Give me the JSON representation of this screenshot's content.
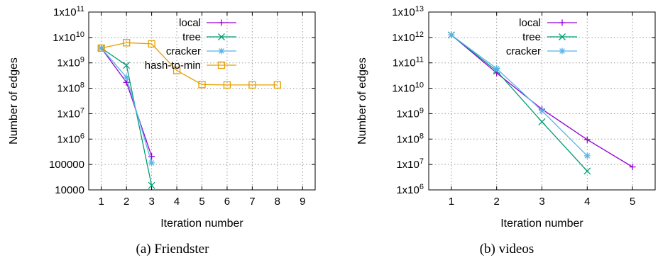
{
  "chart_data": [
    {
      "type": "line",
      "caption": "(a) Friendster",
      "xlabel": "Iteration number",
      "ylabel": "Number of edges",
      "xlim": [
        0.5,
        9.5
      ],
      "ylim": [
        10000,
        100000000000
      ],
      "yscale": "log",
      "grid": true,
      "legend_position": "top-right",
      "x_ticks": [
        "1",
        "2",
        "3",
        "4",
        "5",
        "6",
        "7",
        "8",
        "9"
      ],
      "y_ticks": [
        {
          "value": 10000,
          "label": "10000"
        },
        {
          "value": 100000,
          "label": "100000"
        },
        {
          "value": 1000000,
          "label": "1x10",
          "exp": "6"
        },
        {
          "value": 10000000,
          "label": "1x10",
          "exp": "7"
        },
        {
          "value": 100000000,
          "label": "1x10",
          "exp": "8"
        },
        {
          "value": 1000000000,
          "label": "1x10",
          "exp": "9"
        },
        {
          "value": 10000000000,
          "label": "1x10",
          "exp": "10"
        },
        {
          "value": 100000000000,
          "label": "1x10",
          "exp": "11"
        }
      ],
      "series": [
        {
          "name": "local",
          "color": "#9400d3",
          "marker": "plus",
          "x": [
            1,
            2,
            3
          ],
          "values": [
            3800000000,
            170000000,
            210000
          ]
        },
        {
          "name": "tree",
          "color": "#009e73",
          "marker": "cross",
          "x": [
            1,
            2,
            3
          ],
          "values": [
            3800000000,
            800000000,
            15000
          ]
        },
        {
          "name": "cracker",
          "color": "#56b4e9",
          "marker": "star",
          "x": [
            1,
            2,
            3
          ],
          "values": [
            3800000000,
            270000000,
            115000
          ]
        },
        {
          "name": "hash-to-min",
          "color": "#e69f00",
          "marker": "square",
          "x": [
            1,
            2,
            3,
            4,
            5,
            6,
            7,
            8
          ],
          "values": [
            3800000000,
            6200000000,
            5600000000,
            500000000,
            140000000,
            135000000,
            135000000,
            135000000
          ]
        }
      ]
    },
    {
      "type": "line",
      "caption": "(b) videos",
      "xlabel": "Iteration number",
      "ylabel": "Number of edges",
      "xlim": [
        0.5,
        5.5
      ],
      "ylim": [
        1000000,
        10000000000000
      ],
      "yscale": "log",
      "grid": true,
      "legend_position": "top-right",
      "x_ticks": [
        "1",
        "2",
        "3",
        "4",
        "5"
      ],
      "y_ticks": [
        {
          "value": 1000000,
          "label": "1x10",
          "exp": "6"
        },
        {
          "value": 10000000,
          "label": "1x10",
          "exp": "7"
        },
        {
          "value": 100000000,
          "label": "1x10",
          "exp": "8"
        },
        {
          "value": 1000000000,
          "label": "1x10",
          "exp": "9"
        },
        {
          "value": 10000000000,
          "label": "1x10",
          "exp": "10"
        },
        {
          "value": 100000000000,
          "label": "1x10",
          "exp": "11"
        },
        {
          "value": 1000000000000,
          "label": "1x10",
          "exp": "12"
        },
        {
          "value": 10000000000000,
          "label": "1x10",
          "exp": "13"
        }
      ],
      "series": [
        {
          "name": "local",
          "color": "#9400d3",
          "marker": "plus",
          "x": [
            1,
            2,
            3,
            4,
            5
          ],
          "values": [
            1250000000000,
            40000000000,
            1500000000,
            95000000,
            8000000
          ]
        },
        {
          "name": "tree",
          "color": "#009e73",
          "marker": "cross",
          "x": [
            1,
            2,
            3,
            4
          ],
          "values": [
            1250000000000,
            48000000000,
            480000000,
            5500000
          ]
        },
        {
          "name": "cracker",
          "color": "#56b4e9",
          "marker": "star",
          "x": [
            1,
            2,
            3,
            4
          ],
          "values": [
            1250000000000,
            60000000000,
            1300000000,
            22000000
          ]
        }
      ]
    }
  ]
}
